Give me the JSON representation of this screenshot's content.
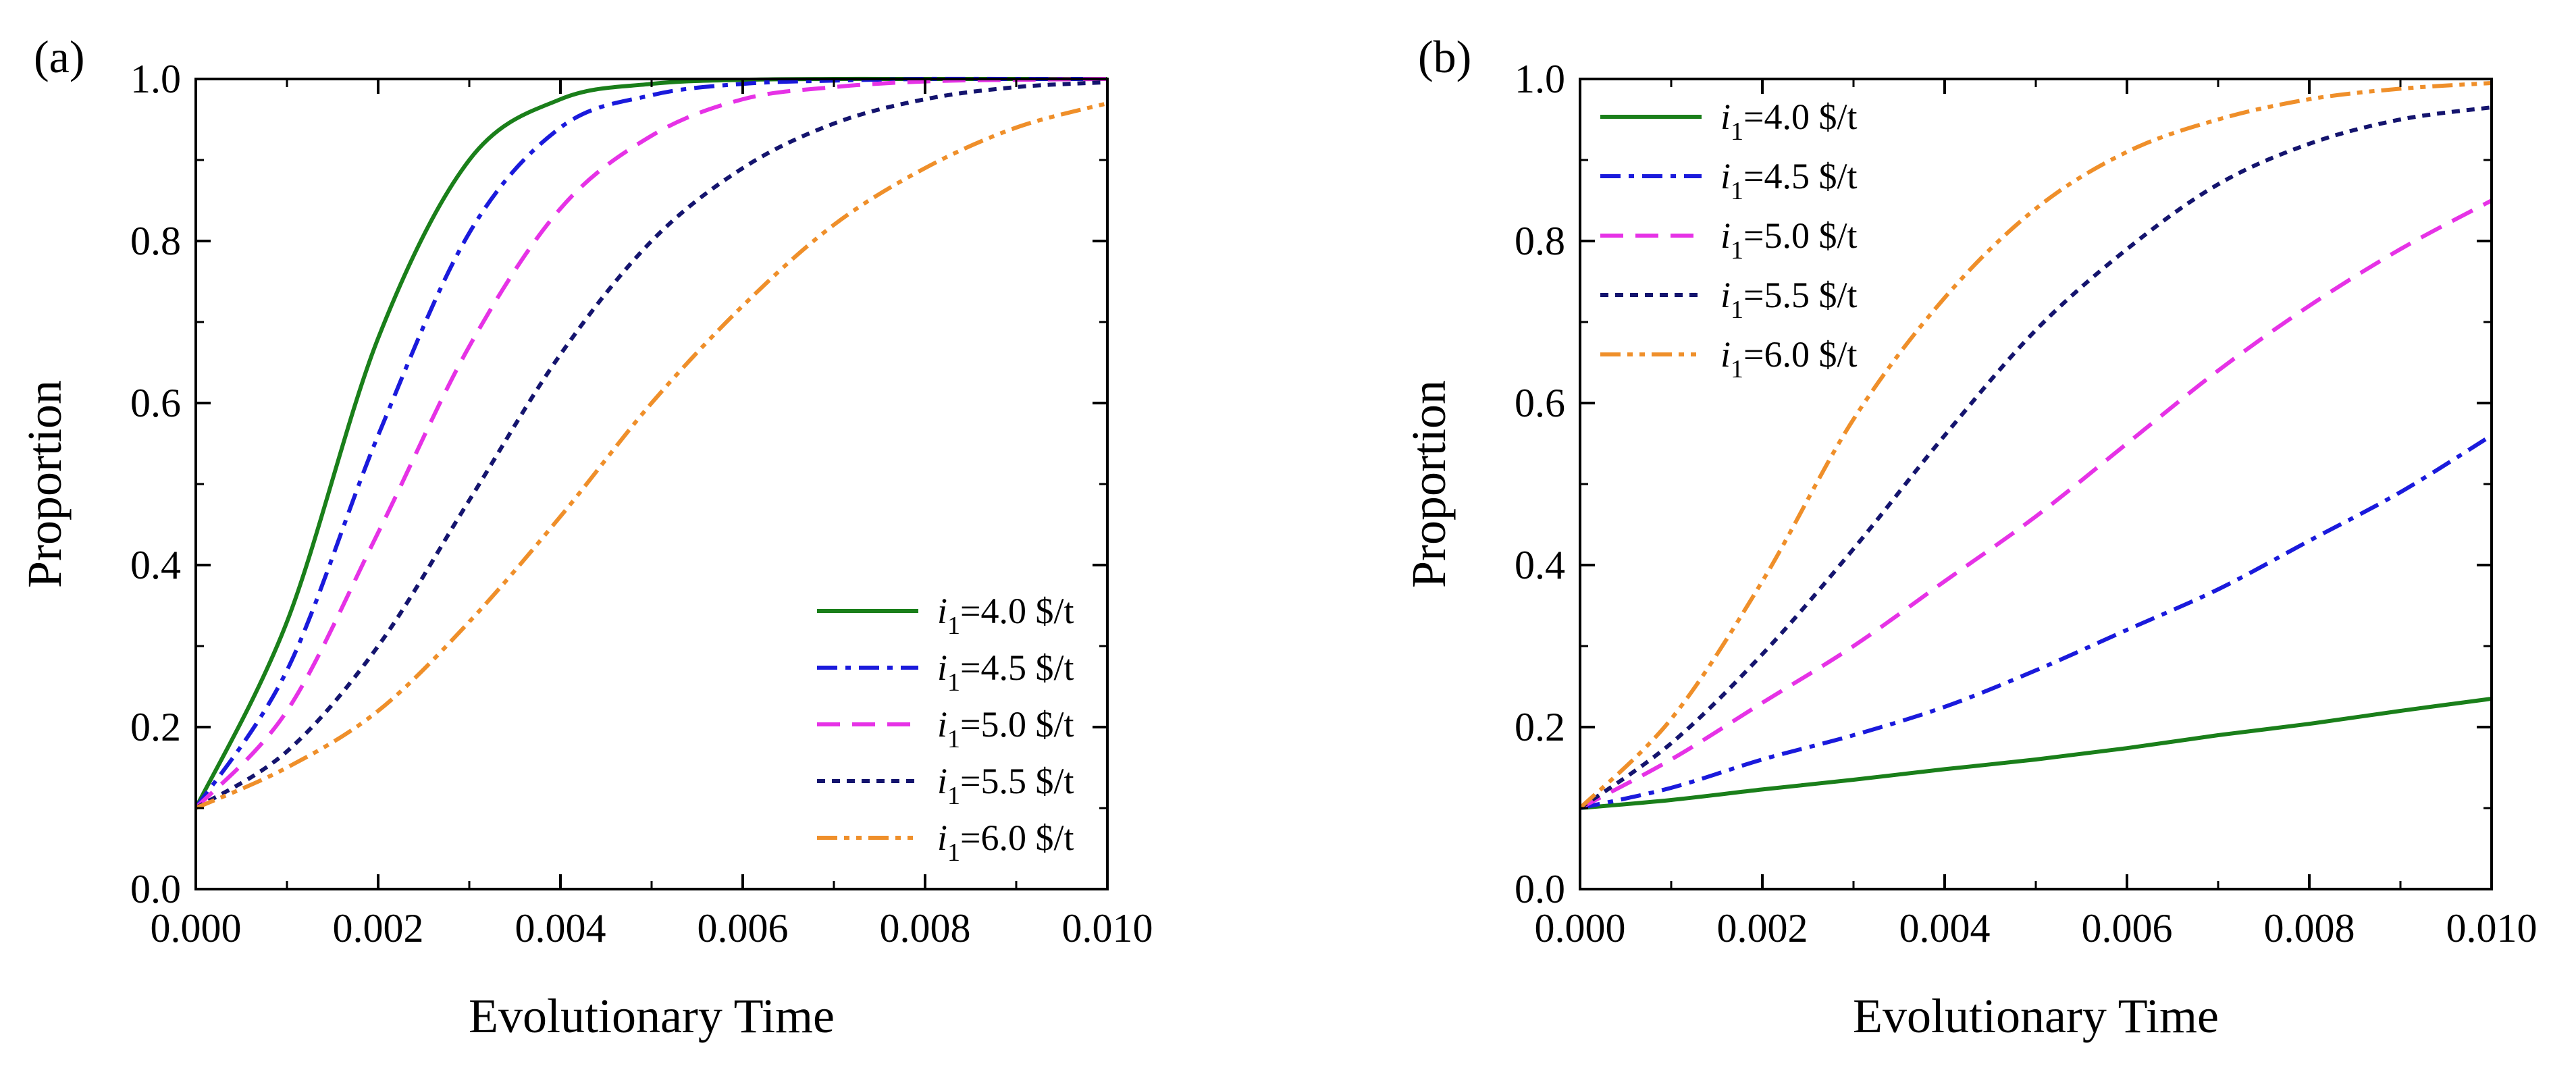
{
  "chart_data": [
    {
      "type": "line",
      "panel_label": "(a)",
      "xlabel": "Evolutionary Time",
      "ylabel": "Proportion",
      "xlim": [
        0,
        0.01
      ],
      "ylim": [
        0,
        1.0
      ],
      "xticks": [
        "0.000",
        "0.002",
        "0.004",
        "0.006",
        "0.008",
        "0.010"
      ],
      "yticks": [
        "0.0",
        "0.2",
        "0.4",
        "0.6",
        "0.8",
        "1.0"
      ],
      "legend_position": "bottom-right",
      "x": [
        0,
        0.001,
        0.002,
        0.003,
        0.004,
        0.005,
        0.006,
        0.007,
        0.008,
        0.009,
        0.01
      ],
      "series": [
        {
          "name": "i1=4.0 $/t",
          "legend_var": "i",
          "legend_sub": "1",
          "legend_rest": "=4.0  $/t",
          "color": "#1a7f1a",
          "dash": "solid",
          "values": [
            0.1,
            0.33,
            0.68,
            0.9,
            0.975,
            0.994,
            0.999,
            1.0,
            1.0,
            1.0,
            1.0
          ]
        },
        {
          "name": "i1=4.5 $/t",
          "legend_var": "i",
          "legend_sub": "1",
          "legend_rest": "=4.5  $/t",
          "color": "#1a1adc",
          "dash": "dashdot",
          "values": [
            0.1,
            0.27,
            0.56,
            0.81,
            0.94,
            0.98,
            0.994,
            0.998,
            1.0,
            1.0,
            1.0
          ]
        },
        {
          "name": "i1=5.0 $/t",
          "legend_var": "i",
          "legend_sub": "1",
          "legend_rest": "=5.0  $/t",
          "color": "#e632e6",
          "dash": "dashed",
          "values": [
            0.1,
            0.22,
            0.44,
            0.67,
            0.84,
            0.93,
            0.975,
            0.99,
            0.997,
            0.999,
            1.0
          ]
        },
        {
          "name": "i1=5.5 $/t",
          "legend_var": "i",
          "legend_sub": "1",
          "legend_rest": "=5.5  $/t",
          "color": "#14146e",
          "dash": "dotted",
          "values": [
            0.1,
            0.17,
            0.3,
            0.48,
            0.66,
            0.8,
            0.89,
            0.945,
            0.975,
            0.99,
            0.996
          ]
        },
        {
          "name": "i1=6.0 $/t",
          "legend_var": "i",
          "legend_sub": "1",
          "legend_rest": "=6.0  $/t",
          "color": "#ef8f2a",
          "dash": "dashdotdot",
          "values": [
            0.1,
            0.15,
            0.22,
            0.33,
            0.46,
            0.6,
            0.72,
            0.82,
            0.89,
            0.94,
            0.97
          ]
        }
      ]
    },
    {
      "type": "line",
      "panel_label": "(b)",
      "xlabel": "Evolutionary Time",
      "ylabel": "Proportion",
      "xlim": [
        0,
        0.01
      ],
      "ylim": [
        0,
        1.0
      ],
      "xticks": [
        "0.000",
        "0.002",
        "0.004",
        "0.006",
        "0.008",
        "0.010"
      ],
      "yticks": [
        "0.0",
        "0.2",
        "0.4",
        "0.6",
        "0.8",
        "1.0"
      ],
      "legend_position": "top-left",
      "x": [
        0,
        0.001,
        0.002,
        0.003,
        0.004,
        0.005,
        0.006,
        0.007,
        0.008,
        0.009,
        0.01
      ],
      "series": [
        {
          "name": "i1=4.0 $/t",
          "legend_var": "i",
          "legend_sub": "1",
          "legend_rest": "=4.0  $/t",
          "color": "#1a7f1a",
          "dash": "solid",
          "values": [
            0.1,
            0.11,
            0.123,
            0.135,
            0.148,
            0.16,
            0.174,
            0.19,
            0.204,
            0.22,
            0.235
          ]
        },
        {
          "name": "i1=4.5 $/t",
          "legend_var": "i",
          "legend_sub": "1",
          "legend_rest": "=4.5  $/t",
          "color": "#1a1adc",
          "dash": "dashdot",
          "values": [
            0.1,
            0.125,
            0.16,
            0.19,
            0.225,
            0.27,
            0.32,
            0.37,
            0.43,
            0.49,
            0.56
          ]
        },
        {
          "name": "i1=5.0 $/t",
          "legend_var": "i",
          "legend_sub": "1",
          "legend_rest": "=5.0  $/t",
          "color": "#e632e6",
          "dash": "dashed",
          "values": [
            0.1,
            0.16,
            0.23,
            0.3,
            0.38,
            0.46,
            0.55,
            0.64,
            0.72,
            0.79,
            0.85
          ]
        },
        {
          "name": "i1=5.5 $/t",
          "legend_var": "i",
          "legend_sub": "1",
          "legend_rest": "=5.5  $/t",
          "color": "#14146e",
          "dash": "dotted",
          "values": [
            0.1,
            0.18,
            0.29,
            0.42,
            0.56,
            0.69,
            0.79,
            0.87,
            0.92,
            0.95,
            0.965
          ]
        },
        {
          "name": "i1=6.0 $/t",
          "legend_var": "i",
          "legend_sub": "1",
          "legend_rest": "=6.0  $/t",
          "color": "#ef8f2a",
          "dash": "dashdotdot",
          "values": [
            0.1,
            0.21,
            0.38,
            0.58,
            0.73,
            0.84,
            0.91,
            0.95,
            0.975,
            0.988,
            0.995
          ]
        }
      ]
    }
  ]
}
